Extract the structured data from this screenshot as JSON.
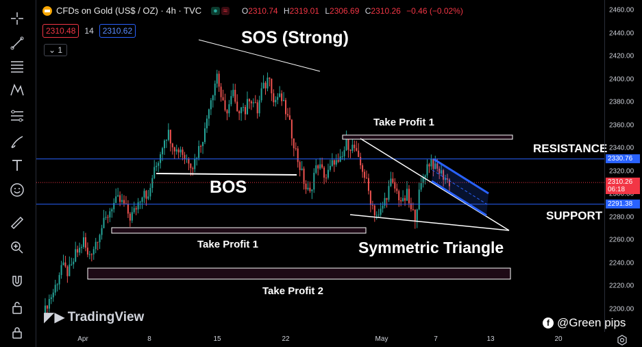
{
  "header": {
    "symbol": "CFDs on Gold (US$ / OZ) · 4h · TVC",
    "open_label": "O",
    "open": "2310.74",
    "high_label": "H",
    "high": "2319.01",
    "low_label": "L",
    "low": "2306.69",
    "close_label": "C",
    "close": "2310.26",
    "change": "−0.46 (−0.02%)"
  },
  "bid_ask": {
    "bid": "2310.48",
    "spread": "14",
    "ask": "2310.62"
  },
  "indicator_toggle": "1",
  "branding": {
    "logo_text": "TradingView",
    "watermark": "@Green pips"
  },
  "toolbar": {
    "icons": [
      "crosshair-icon",
      "trendline-icon",
      "fib-icon",
      "pattern-icon",
      "projection-icon",
      "brush-icon",
      "text-icon",
      "emoji-icon",
      "ruler-icon",
      "zoom-icon",
      "magnet-icon",
      "lock-icon",
      "padlock-icon"
    ]
  },
  "annotations": {
    "sos": "SOS (Strong)",
    "bos": "BOS",
    "tp1_top": "Take Profit 1",
    "tp1_bottom": "Take Profit 1",
    "tp2": "Take Profit 2",
    "triangle": "Symmetric Triangle",
    "resistance": "RESISTANCE",
    "support": "SUPPORT"
  },
  "price_tags": {
    "resistance": "2330.76",
    "current": "2310.26",
    "countdown": "06:18",
    "support": "2291.38"
  },
  "colors": {
    "up": "#26a69a",
    "down": "#ef5350",
    "level_line": "#2962ff",
    "current": "#f23645"
  },
  "chart_data": {
    "type": "candlestick",
    "symbol": "XAUUSD",
    "timeframe": "4h",
    "ylim": [
      2197,
      2462
    ],
    "y_ticks": [
      2200,
      2220,
      2240,
      2260,
      2280,
      2300,
      2320,
      2340,
      2360,
      2380,
      2400,
      2420,
      2440,
      2460
    ],
    "x_ticks": [
      "Apr",
      "8",
      "15",
      "22",
      "May",
      "7",
      "13",
      "20"
    ],
    "levels": {
      "resistance": 2330.76,
      "support": 2291.38,
      "current": 2310.26
    },
    "close_path": [
      [
        0,
        2193
      ],
      [
        2,
        2205
      ],
      [
        5,
        2215
      ],
      [
        7,
        2225
      ],
      [
        9,
        2238
      ],
      [
        12,
        2232
      ],
      [
        14,
        2236
      ],
      [
        16,
        2248
      ],
      [
        18,
        2252
      ],
      [
        20,
        2260
      ],
      [
        22,
        2246
      ],
      [
        25,
        2254
      ],
      [
        28,
        2268
      ],
      [
        31,
        2278
      ],
      [
        34,
        2290
      ],
      [
        37,
        2295
      ],
      [
        40,
        2291
      ],
      [
        43,
        2280
      ],
      [
        45,
        2285
      ],
      [
        48,
        2297
      ],
      [
        50,
        2305
      ],
      [
        52,
        2295
      ],
      [
        54,
        2315
      ],
      [
        57,
        2330
      ],
      [
        60,
        2350
      ],
      [
        62,
        2353
      ],
      [
        64,
        2345
      ],
      [
        66,
        2338
      ],
      [
        68,
        2340
      ],
      [
        70,
        2332
      ],
      [
        72,
        2330
      ],
      [
        74,
        2325
      ],
      [
        76,
        2335
      ],
      [
        78,
        2345
      ],
      [
        80,
        2355
      ],
      [
        82,
        2378
      ],
      [
        84,
        2390
      ],
      [
        86,
        2405
      ],
      [
        88,
        2385
      ],
      [
        90,
        2370
      ],
      [
        92,
        2378
      ],
      [
        94,
        2388
      ],
      [
        96,
        2368
      ],
      [
        98,
        2380
      ],
      [
        100,
        2372
      ],
      [
        102,
        2385
      ],
      [
        104,
        2380
      ],
      [
        106,
        2372
      ],
      [
        108,
        2390
      ],
      [
        110,
        2395
      ],
      [
        112,
        2405
      ],
      [
        114,
        2380
      ],
      [
        116,
        2385
      ],
      [
        118,
        2382
      ],
      [
        120,
        2372
      ],
      [
        122,
        2360
      ],
      [
        124,
        2345
      ],
      [
        126,
        2330
      ],
      [
        128,
        2318
      ],
      [
        130,
        2305
      ],
      [
        132,
        2300
      ],
      [
        134,
        2318
      ],
      [
        136,
        2326
      ],
      [
        138,
        2320
      ],
      [
        140,
        2315
      ],
      [
        142,
        2322
      ],
      [
        144,
        2330
      ],
      [
        146,
        2325
      ],
      [
        148,
        2332
      ],
      [
        150,
        2345
      ],
      [
        152,
        2342
      ],
      [
        154,
        2340
      ],
      [
        156,
        2328
      ],
      [
        158,
        2322
      ],
      [
        160,
        2310
      ],
      [
        162,
        2295
      ],
      [
        164,
        2285
      ],
      [
        166,
        2280
      ],
      [
        168,
        2290
      ],
      [
        170,
        2300
      ],
      [
        172,
        2310
      ],
      [
        174,
        2305
      ],
      [
        176,
        2298
      ],
      [
        178,
        2292
      ],
      [
        180,
        2300
      ],
      [
        182,
        2285
      ],
      [
        184,
        2282
      ],
      [
        186,
        2300
      ],
      [
        188,
        2315
      ],
      [
        190,
        2325
      ],
      [
        192,
        2330
      ],
      [
        194,
        2322
      ],
      [
        196,
        2320
      ],
      [
        198,
        2316
      ],
      [
        200,
        2312
      ],
      [
        201,
        2310.26
      ]
    ]
  }
}
